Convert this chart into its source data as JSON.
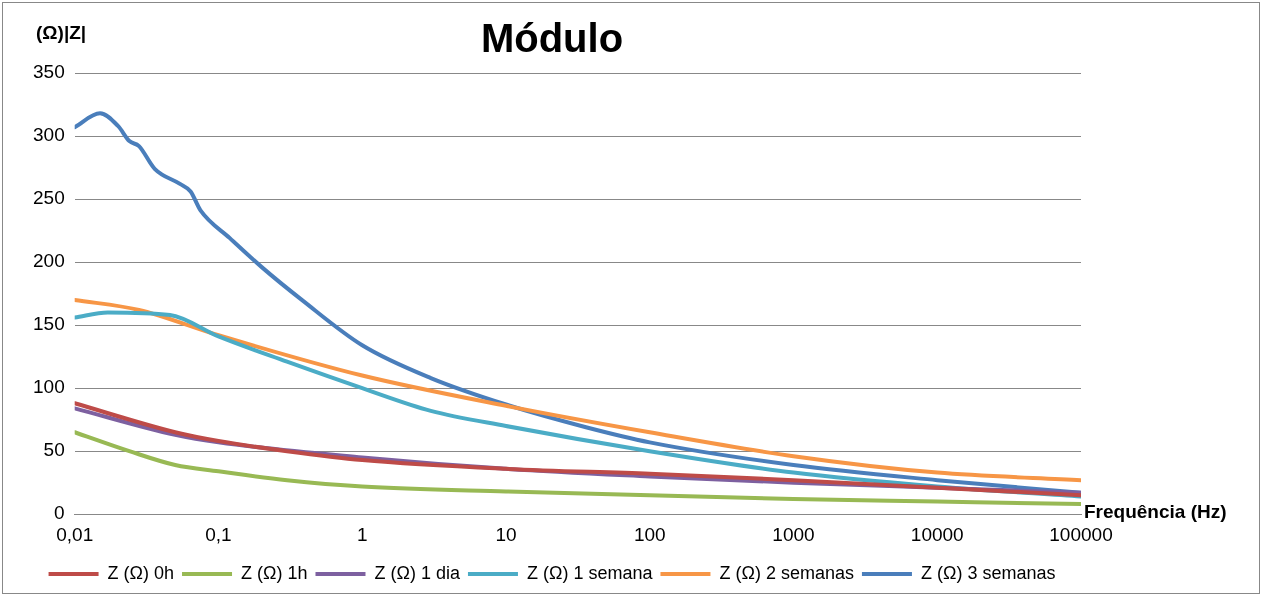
{
  "chart_data": {
    "type": "line",
    "title": "Módulo",
    "xlabel": "Frequência (Hz)",
    "ylabel": "(Ω)|Z|",
    "log": "x",
    "grid": "y",
    "legend": "bottom",
    "marker": "none",
    "line_style": "solid",
    "xlim": [
      0.01,
      100000
    ],
    "xticks": [
      {
        "value": 0.01,
        "label": "0,01"
      },
      {
        "value": 0.1,
        "label": "0,1"
      },
      1,
      10,
      100,
      1000,
      10000,
      100000
    ],
    "ylim": [
      0,
      350
    ],
    "yticks": [
      0,
      50,
      100,
      150,
      200,
      250,
      300,
      350
    ],
    "series": [
      {
        "name": "Z (Ω) 0h",
        "color": "#be4b48",
        "x": [
          0.01,
          0.05,
          0.1,
          0.3,
          1,
          10,
          100,
          1000,
          10000,
          100000
        ],
        "values": [
          88,
          65,
          58,
          50,
          43,
          36,
          32,
          27,
          21,
          15
        ]
      },
      {
        "name": "Z (Ω) 1h",
        "color": "#98b954",
        "x": [
          0.01,
          0.024,
          0.05,
          0.1,
          0.3,
          1,
          10,
          100,
          1000,
          10000,
          100000
        ],
        "values": [
          65,
          50,
          39,
          34,
          27,
          22,
          18,
          15,
          12,
          10,
          8
        ]
      },
      {
        "name": "Z (Ω) 1 dia",
        "color": "#7d60a0",
        "x": [
          0.01,
          0.05,
          0.1,
          1,
          10,
          100,
          1000,
          10000,
          100000
        ],
        "values": [
          84,
          63,
          57,
          45,
          36,
          30,
          25,
          21,
          17
        ]
      },
      {
        "name": "Z (Ω) 1 semana",
        "color": "#4bacc6",
        "x": [
          0.01,
          0.017,
          0.046,
          0.1,
          0.3,
          1,
          3,
          10,
          100,
          1000,
          10000,
          100000
        ],
        "values": [
          156,
          160,
          158,
          141,
          121,
          100,
          82,
          70,
          50,
          33,
          22,
          14
        ]
      },
      {
        "name": "Z (Ω) 2 semanas",
        "color": "#f79646",
        "x": [
          0.01,
          0.028,
          0.1,
          1,
          10,
          100,
          1000,
          10000,
          100000
        ],
        "values": [
          170,
          162,
          142,
          110,
          86,
          65,
          46,
          33,
          27
        ]
      },
      {
        "name": "Z (Ω) 3 semanas",
        "color": "#4a7ebb",
        "x": [
          0.01,
          0.015,
          0.02,
          0.024,
          0.028,
          0.036,
          0.054,
          0.064,
          0.075,
          0.12,
          0.2,
          0.38,
          1,
          3,
          10,
          36,
          100,
          1000,
          10000,
          100000
        ],
        "values": [
          307,
          318,
          308,
          296,
          292,
          274,
          262,
          256,
          241,
          219,
          196,
          170,
          134,
          108,
          87,
          69,
          57,
          39,
          27,
          17
        ]
      }
    ]
  }
}
